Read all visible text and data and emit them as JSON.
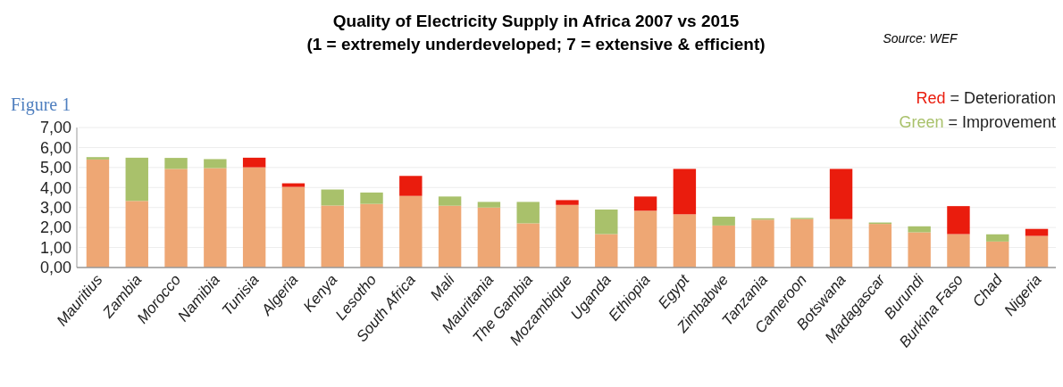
{
  "chart_data": {
    "type": "bar",
    "stacked": true,
    "title": "Quality of Electricity Supply in Africa 2007 vs 2015",
    "subtitle": "(1 = extremely underdeveloped; 7 = extensive & efficient)",
    "annotations": [
      "Source: WEF",
      "Figure 1"
    ],
    "categories": [
      "Mauritius",
      "Zambia",
      "Morocco",
      "Namibia",
      "Tunisia",
      "Algeria",
      "Kenya",
      "Lesotho",
      "South Africa",
      "Mali",
      "Mauritania",
      "The Gambia",
      "Mozambique",
      "Uganda",
      "Ethiopia",
      "Egypt",
      "Zimbabwe",
      "Tanzania",
      "Cameroon",
      "Botswana",
      "Madagascar",
      "Burundi",
      "Burkina Faso",
      "Chad",
      "Nigeria"
    ],
    "series": [
      {
        "color": "#eea774",
        "values": [
          5.4,
          3.33,
          4.93,
          4.97,
          5.01,
          4.03,
          3.1,
          3.18,
          3.58,
          3.09,
          3.0,
          2.21,
          3.13,
          1.67,
          2.84,
          2.66,
          2.1,
          2.39,
          2.42,
          2.42,
          2.18,
          1.76,
          1.67,
          1.3,
          1.58
        ]
      },
      {
        "name": "Green = Improvement",
        "color": "#a9c16b",
        "values": [
          0.12,
          2.16,
          0.55,
          0.45,
          0,
          0,
          0.8,
          0.57,
          0,
          0.46,
          0.28,
          1.07,
          0,
          1.23,
          0,
          0,
          0.44,
          0.07,
          0.06,
          0,
          0.07,
          0.3,
          0,
          0.36,
          0
        ]
      },
      {
        "name": "Red = Deterioration",
        "color": "#ea1c0d",
        "values": [
          0,
          0,
          0,
          0,
          0.48,
          0.18,
          0,
          0,
          1.0,
          0,
          0,
          0,
          0.24,
          0,
          0.71,
          2.27,
          0,
          0,
          0,
          2.51,
          0,
          0,
          1.4,
          0,
          0.35
        ]
      }
    ],
    "ylim": [
      0,
      7
    ],
    "yticks": [
      {
        "value": 0,
        "label": "0,00"
      },
      {
        "value": 1,
        "label": "1,00"
      },
      {
        "value": 2,
        "label": "2,00"
      },
      {
        "value": 3,
        "label": "3,00"
      },
      {
        "value": 4,
        "label": "4,00"
      },
      {
        "value": 5,
        "label": "5,00"
      },
      {
        "value": 6,
        "label": "6,00"
      },
      {
        "value": 7,
        "label": "7,00"
      }
    ],
    "grid": "y",
    "legend": "top right"
  }
}
